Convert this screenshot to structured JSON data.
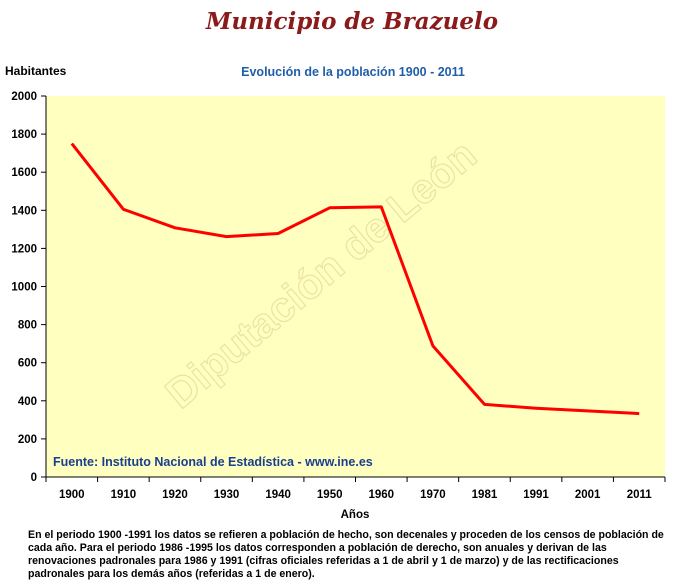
{
  "chart_data": {
    "type": "line",
    "title": "Municipio de Brazuelo",
    "subtitle": "Evolución de la población 1900 - 2011",
    "ylabel": "Habitantes",
    "xlabel": "Años",
    "ylim": [
      0,
      2000
    ],
    "yticks": [
      "0",
      "200",
      "400",
      "600",
      "800",
      "1000",
      "1200",
      "1400",
      "1600",
      "1800",
      "2000"
    ],
    "categories": [
      "1900",
      "1910",
      "1920",
      "1930",
      "1940",
      "1950",
      "1960",
      "1970",
      "1981",
      "1991",
      "2001",
      "2011"
    ],
    "series": [
      {
        "x": [
          1900,
          1910,
          1920,
          1930,
          1940,
          1950,
          1960,
          1970,
          1981,
          1991,
          2011
        ],
        "values": [
          1750,
          1405,
          1308,
          1262,
          1278,
          1413,
          1418,
          688,
          381,
          361,
          333
        ],
        "color": "#ff0000"
      }
    ],
    "grid": false,
    "plot_background": "#ffffc0",
    "source": "Fuente: Instituto Nacional de Estadística - www.ine.es",
    "watermark": "Diputación de León",
    "footnote": "En el periodo 1900 -1991 los datos se refieren a población de hecho, son decenales y proceden de los censos de población de cada año. Para el periodo 1986 -1995 los datos corresponden a población de derecho, son anuales y derivan de las renovaciones padronales para 1986 y 1991 (cifras oficiales referidas a 1 de abril y 1 de marzo) y de las rectificaciones padronales para los demás años (referidas a 1 de enero)."
  }
}
